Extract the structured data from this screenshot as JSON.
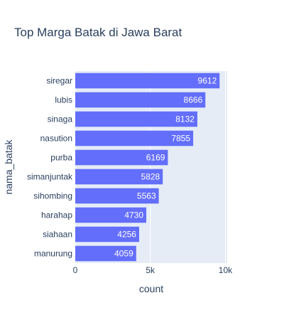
{
  "chart_data": {
    "type": "bar",
    "orientation": "horizontal",
    "title": "Top Marga Batak di Jawa Barat",
    "xlabel": "count",
    "ylabel": "nama_batak",
    "categories": [
      "siregar",
      "lubis",
      "sinaga",
      "nasution",
      "purba",
      "simanjuntak",
      "sihombing",
      "harahap",
      "siahaan",
      "manurung"
    ],
    "values": [
      9612,
      8666,
      8132,
      7855,
      6169,
      5828,
      5563,
      4730,
      4256,
      4059
    ],
    "xlim": [
      0,
      10120
    ],
    "xticks": [
      0,
      5000,
      10000
    ],
    "xtick_labels": [
      "0",
      "5k",
      "10k"
    ],
    "grid": true,
    "bar_color": "#636efa",
    "plot_bg": "#e5ecf6",
    "grid_color": "#ffffff",
    "text_color": "#2a3f5f"
  }
}
